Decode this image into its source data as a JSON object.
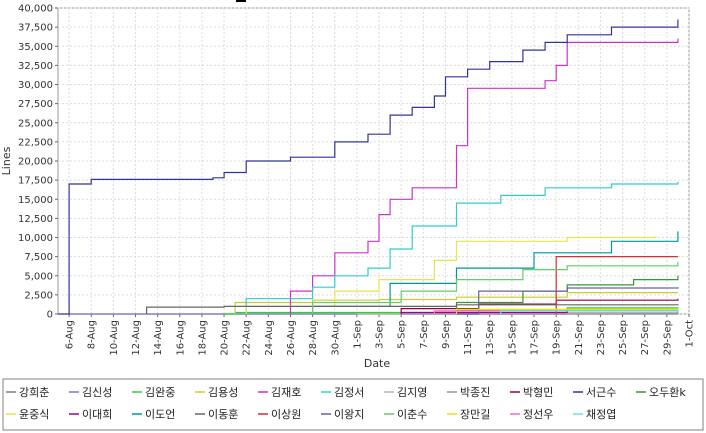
{
  "chart_data": {
    "type": "line",
    "title": "",
    "xlabel": "Date",
    "ylabel": "Lines",
    "ylim": [
      0,
      40000
    ],
    "yticks": [
      0,
      2500,
      5000,
      7500,
      10000,
      12500,
      15000,
      17500,
      20000,
      22500,
      25000,
      27500,
      30000,
      32500,
      35000,
      37500,
      40000
    ],
    "ytick_labels": [
      "0",
      "2,500",
      "5,000",
      "7,500",
      "10,000",
      "12,500",
      "15,000",
      "17,500",
      "20,000",
      "22,500",
      "25,000",
      "27,500",
      "30,000",
      "32,500",
      "35,000",
      "37,500",
      "40,000"
    ],
    "xlim": [
      "2008-08-05",
      "2008-10-01"
    ],
    "xticks": [
      "2008-08-06",
      "2008-08-08",
      "2008-08-10",
      "2008-08-12",
      "2008-08-14",
      "2008-08-16",
      "2008-08-18",
      "2008-08-20",
      "2008-08-22",
      "2008-08-24",
      "2008-08-26",
      "2008-08-28",
      "2008-08-30",
      "2008-09-01",
      "2008-09-03",
      "2008-09-05",
      "2008-09-07",
      "2008-09-09",
      "2008-09-11",
      "2008-09-13",
      "2008-09-15",
      "2008-09-17",
      "2008-09-19",
      "2008-09-21",
      "2008-09-23",
      "2008-09-25",
      "2008-09-27",
      "2008-09-29",
      "2008-10-01"
    ],
    "xtick_labels": [
      "6-Aug",
      "8-Aug",
      "10-Aug",
      "12-Aug",
      "14-Aug",
      "16-Aug",
      "18-Aug",
      "20-Aug",
      "22-Aug",
      "24-Aug",
      "26-Aug",
      "28-Aug",
      "30-Aug",
      "1-Sep",
      "3-Sep",
      "5-Sep",
      "7-Sep",
      "9-Sep",
      "11-Sep",
      "13-Sep",
      "15-Sep",
      "17-Sep",
      "19-Sep",
      "21-Sep",
      "23-Sep",
      "25-Sep",
      "27-Sep",
      "29-Sep",
      "1-Oct"
    ],
    "grid": true,
    "legend_position": "bottom",
    "series": [
      {
        "name": "강희춘",
        "color": "#7f7f7f",
        "points": [
          [
            "2008-08-06",
            0
          ],
          [
            "2008-09-30",
            0
          ]
        ]
      },
      {
        "name": "김신성",
        "color": "#7b7bc8",
        "points": [
          [
            "2008-08-06",
            0
          ],
          [
            "2008-09-25",
            100
          ],
          [
            "2008-09-30",
            300
          ]
        ]
      },
      {
        "name": "김완중",
        "color": "#33cc33",
        "points": [
          [
            "2008-08-20",
            0
          ],
          [
            "2008-08-21",
            200
          ],
          [
            "2008-09-10",
            500
          ],
          [
            "2008-09-20",
            800
          ],
          [
            "2008-09-30",
            900
          ]
        ]
      },
      {
        "name": "김용성",
        "color": "#cccc33",
        "points": [
          [
            "2008-08-21",
            0
          ],
          [
            "2008-08-21",
            1500
          ],
          [
            "2008-08-28",
            1800
          ],
          [
            "2008-09-03",
            1900
          ],
          [
            "2008-09-10",
            2200
          ],
          [
            "2008-09-20",
            2800
          ],
          [
            "2008-09-30",
            2800
          ]
        ]
      },
      {
        "name": "김재호",
        "color": "#cc33cc",
        "points": [
          [
            "2008-08-26",
            0
          ],
          [
            "2008-08-26",
            3000
          ],
          [
            "2008-08-28",
            5000
          ],
          [
            "2008-08-30",
            8000
          ],
          [
            "2008-09-02",
            9500
          ],
          [
            "2008-09-03",
            13000
          ],
          [
            "2008-09-04",
            15000
          ],
          [
            "2008-09-06",
            16500
          ],
          [
            "2008-09-09",
            16500
          ],
          [
            "2008-09-10",
            22000
          ],
          [
            "2008-09-11",
            29500
          ],
          [
            "2008-09-18",
            30500
          ],
          [
            "2008-09-19",
            32500
          ],
          [
            "2008-09-20",
            35500
          ],
          [
            "2008-09-30",
            36000
          ]
        ]
      },
      {
        "name": "김정서",
        "color": "#33cccc",
        "points": [
          [
            "2008-08-22",
            0
          ],
          [
            "2008-08-22",
            2000
          ],
          [
            "2008-08-28",
            3500
          ],
          [
            "2008-08-30",
            5000
          ],
          [
            "2008-09-02",
            6000
          ],
          [
            "2008-09-04",
            8500
          ],
          [
            "2008-09-06",
            11500
          ],
          [
            "2008-09-10",
            14500
          ],
          [
            "2008-09-14",
            15500
          ],
          [
            "2008-09-18",
            16500
          ],
          [
            "2008-09-24",
            17000
          ],
          [
            "2008-09-30",
            17300
          ]
        ]
      },
      {
        "name": "김지영",
        "color": "#b3b3b3",
        "points": [
          [
            "2008-09-01",
            0
          ],
          [
            "2008-09-20",
            200
          ],
          [
            "2008-09-30",
            400
          ]
        ]
      },
      {
        "name": "박종진",
        "color": "#999999",
        "points": [
          [
            "2008-09-05",
            0
          ],
          [
            "2008-09-30",
            300
          ]
        ]
      },
      {
        "name": "박형민",
        "color": "#990033",
        "points": [
          [
            "2008-09-05",
            0
          ],
          [
            "2008-09-05",
            700
          ],
          [
            "2008-09-12",
            1300
          ],
          [
            "2008-09-19",
            1800
          ],
          [
            "2008-09-30",
            2000
          ]
        ]
      },
      {
        "name": "서근수",
        "color": "#333399",
        "points": [
          [
            "2008-08-05",
            0
          ],
          [
            "2008-08-06",
            17000
          ],
          [
            "2008-08-08",
            17600
          ],
          [
            "2008-08-19",
            17800
          ],
          [
            "2008-08-20",
            18500
          ],
          [
            "2008-08-22",
            20000
          ],
          [
            "2008-08-26",
            20500
          ],
          [
            "2008-08-30",
            22500
          ],
          [
            "2008-09-02",
            23500
          ],
          [
            "2008-09-04",
            26000
          ],
          [
            "2008-09-06",
            27000
          ],
          [
            "2008-09-08",
            28500
          ],
          [
            "2008-09-09",
            31000
          ],
          [
            "2008-09-11",
            32000
          ],
          [
            "2008-09-13",
            33000
          ],
          [
            "2008-09-16",
            34500
          ],
          [
            "2008-09-18",
            35500
          ],
          [
            "2008-09-20",
            36500
          ],
          [
            "2008-09-24",
            37500
          ],
          [
            "2008-09-30",
            38500
          ]
        ]
      },
      {
        "name": "오두환k",
        "color": "#339933",
        "points": [
          [
            "2008-09-10",
            0
          ],
          [
            "2008-09-10",
            1500
          ],
          [
            "2008-09-16",
            3000
          ],
          [
            "2008-09-20",
            3800
          ],
          [
            "2008-09-26",
            4500
          ],
          [
            "2008-09-30",
            5000
          ]
        ]
      },
      {
        "name": "윤중식",
        "color": "#e6e64c",
        "points": [
          [
            "2008-08-22",
            0
          ],
          [
            "2008-08-22",
            1000
          ],
          [
            "2008-08-30",
            3000
          ],
          [
            "2008-09-03",
            4500
          ],
          [
            "2008-09-08",
            7000
          ],
          [
            "2008-09-10",
            9500
          ],
          [
            "2008-09-20",
            10000
          ],
          [
            "2008-09-28",
            10200
          ]
        ]
      },
      {
        "name": "이대희",
        "color": "#990099",
        "points": [
          [
            "2008-09-05",
            0
          ],
          [
            "2008-09-05",
            200
          ],
          [
            "2008-09-20",
            400
          ],
          [
            "2008-09-30",
            600
          ]
        ]
      },
      {
        "name": "이도언",
        "color": "#009999",
        "points": [
          [
            "2008-08-28",
            0
          ],
          [
            "2008-08-28",
            1000
          ],
          [
            "2008-09-04",
            4000
          ],
          [
            "2008-09-10",
            6000
          ],
          [
            "2008-09-17",
            8000
          ],
          [
            "2008-09-24",
            9500
          ],
          [
            "2008-09-30",
            10800
          ]
        ]
      },
      {
        "name": "이동훈",
        "color": "#666666",
        "points": [
          [
            "2008-08-13",
            0
          ],
          [
            "2008-08-13",
            900
          ],
          [
            "2008-08-20",
            1000
          ],
          [
            "2008-09-10",
            1200
          ],
          [
            "2008-09-30",
            1300
          ]
        ]
      },
      {
        "name": "이상원",
        "color": "#cc3333",
        "points": [
          [
            "2008-09-19",
            0
          ],
          [
            "2008-09-19",
            7500
          ],
          [
            "2008-09-30",
            7500
          ]
        ]
      },
      {
        "name": "이왕지",
        "color": "#666699",
        "points": [
          [
            "2008-09-10",
            0
          ],
          [
            "2008-09-12",
            3000
          ],
          [
            "2008-09-20",
            3400
          ],
          [
            "2008-09-30",
            3500
          ]
        ]
      },
      {
        "name": "이춘수",
        "color": "#66cc66",
        "points": [
          [
            "2008-08-28",
            0
          ],
          [
            "2008-08-28",
            1500
          ],
          [
            "2008-09-05",
            3000
          ],
          [
            "2008-09-10",
            4500
          ],
          [
            "2008-09-16",
            5800
          ],
          [
            "2008-09-20",
            6300
          ],
          [
            "2008-09-30",
            6800
          ]
        ]
      },
      {
        "name": "장만길",
        "color": "#e6e600",
        "points": [
          [
            "2008-09-10",
            0
          ],
          [
            "2008-09-10",
            600
          ],
          [
            "2008-09-30",
            800
          ]
        ]
      },
      {
        "name": "정선우",
        "color": "#ff66cc",
        "points": [
          [
            "2008-09-08",
            0
          ],
          [
            "2008-09-08",
            400
          ],
          [
            "2008-09-30",
            700
          ]
        ]
      },
      {
        "name": "채정엽",
        "color": "#66e6e6",
        "points": [
          [
            "2008-09-14",
            0
          ],
          [
            "2008-09-14",
            400
          ],
          [
            "2008-09-30",
            800
          ]
        ]
      }
    ]
  }
}
